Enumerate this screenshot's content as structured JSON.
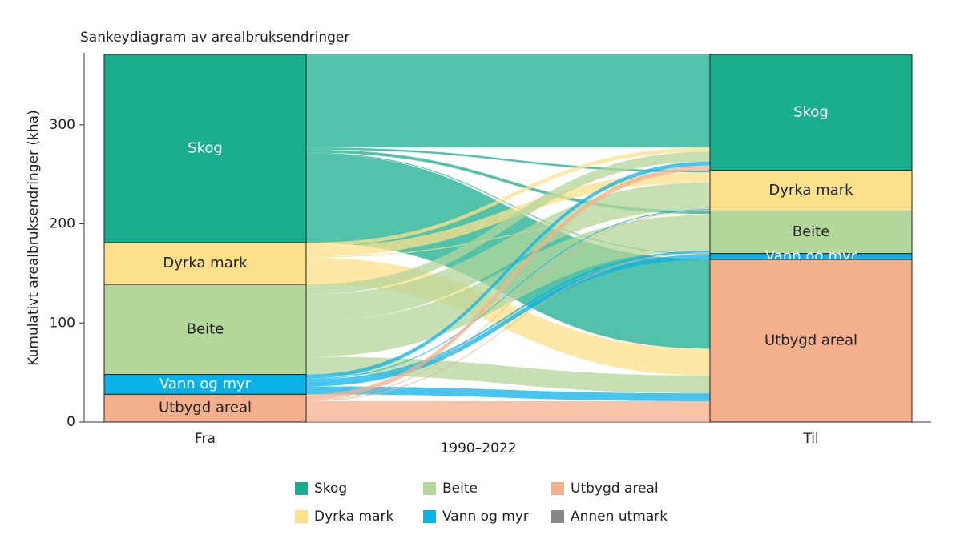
{
  "chart_data": {
    "type": "sankey",
    "title": "Sankeydiagram av arealbruksendringer",
    "y_label": "Kumulativt arealbruksendringer (kha)",
    "x_categories": [
      "Fra",
      "Til"
    ],
    "period": "1990–2022",
    "ylim": [
      0,
      371
    ],
    "yticks": [
      0,
      100,
      200,
      300
    ],
    "nodes": [
      {
        "name": "Skog",
        "color": "#1aae8f",
        "label_color": "#ffffff"
      },
      {
        "name": "Dyrka mark",
        "color": "#fde08a",
        "label_color": "#222222"
      },
      {
        "name": "Beite",
        "color": "#b3d69a",
        "label_color": "#222222"
      },
      {
        "name": "Vann og myr",
        "color": "#0ab2e8",
        "label_color": "#ffffff"
      },
      {
        "name": "Utbygd areal",
        "color": "#f4b08c",
        "label_color": "#222222"
      }
    ],
    "from_values": [
      190,
      42,
      91,
      20,
      28
    ],
    "to_values": [
      117,
      41,
      43,
      6,
      164
    ],
    "flows": [
      {
        "from": 0,
        "to": 0,
        "value": 94
      },
      {
        "from": 0,
        "to": 1,
        "value": 2
      },
      {
        "from": 0,
        "to": 2,
        "value": 3
      },
      {
        "from": 0,
        "to": 3,
        "value": 1
      },
      {
        "from": 0,
        "to": 4,
        "value": 90
      },
      {
        "from": 1,
        "to": 0,
        "value": 4
      },
      {
        "from": 1,
        "to": 1,
        "value": 10
      },
      {
        "from": 1,
        "to": 2,
        "value": 1
      },
      {
        "from": 1,
        "to": 4,
        "value": 27
      },
      {
        "from": 2,
        "to": 0,
        "value": 10
      },
      {
        "from": 2,
        "to": 1,
        "value": 27
      },
      {
        "from": 2,
        "to": 2,
        "value": 36
      },
      {
        "from": 2,
        "to": 4,
        "value": 18
      },
      {
        "from": 3,
        "to": 0,
        "value": 4
      },
      {
        "from": 3,
        "to": 1,
        "value": 1
      },
      {
        "from": 3,
        "to": 2,
        "value": 2
      },
      {
        "from": 3,
        "to": 3,
        "value": 5
      },
      {
        "from": 3,
        "to": 4,
        "value": 8
      },
      {
        "from": 4,
        "to": 0,
        "value": 5
      },
      {
        "from": 4,
        "to": 1,
        "value": 1
      },
      {
        "from": 4,
        "to": 2,
        "value": 1
      },
      {
        "from": 4,
        "to": 4,
        "value": 21
      }
    ],
    "legend": [
      {
        "name": "Skog",
        "color": "#1aae8f"
      },
      {
        "name": "Beite",
        "color": "#b3d69a"
      },
      {
        "name": "Utbygd areal",
        "color": "#f4b08c"
      },
      {
        "name": "Dyrka mark",
        "color": "#fde08a"
      },
      {
        "name": "Vann og myr",
        "color": "#0ab2e8"
      },
      {
        "name": "Annen utmark",
        "color": "#888888"
      }
    ]
  }
}
